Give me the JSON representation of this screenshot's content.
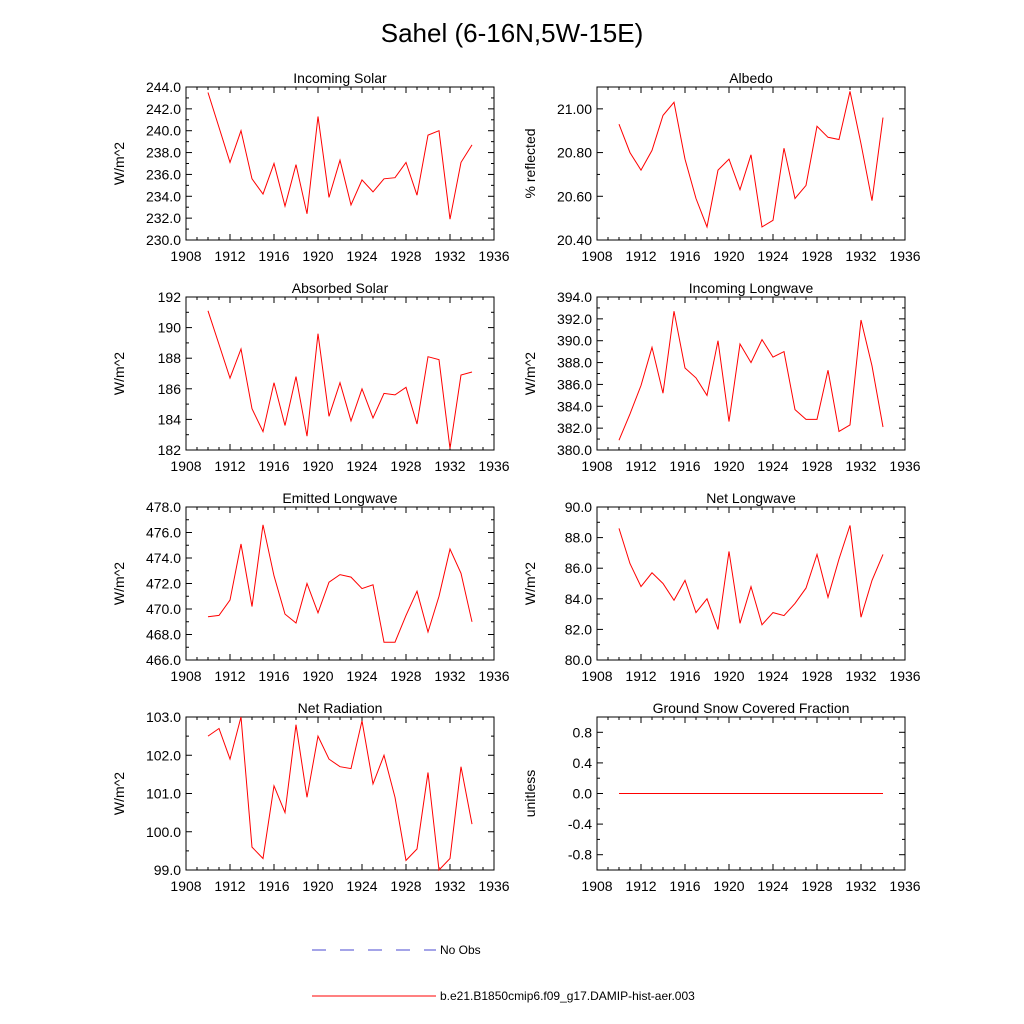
{
  "figure": {
    "title": "Sahel (6-16N,5W-15E)"
  },
  "legend": {
    "entries": [
      {
        "label": "No Obs",
        "color": "#4a4ad0",
        "style": "dashed"
      },
      {
        "label": "b.e21.B1850cmip6.f09_g17.DAMIP-hist-aer.003",
        "color": "#ff0000",
        "style": "solid"
      }
    ]
  },
  "chart_data": [
    {
      "type": "line",
      "title": "Incoming Solar",
      "ylabel": "W/m^2",
      "xlim": [
        1908,
        1936
      ],
      "ylim": [
        230.0,
        244.0
      ],
      "xticks": [
        "1908",
        "1912",
        "1916",
        "1920",
        "1924",
        "1928",
        "1932",
        "1936"
      ],
      "yticks": [
        "230.0",
        "232.0",
        "234.0",
        "236.0",
        "238.0",
        "240.0",
        "242.0",
        "244.0"
      ],
      "series": [
        {
          "color": "#ff0000",
          "x": [
            1910,
            1911,
            1912,
            1913,
            1914,
            1915,
            1916,
            1917,
            1918,
            1919,
            1920,
            1921,
            1922,
            1923,
            1924,
            1925,
            1926,
            1927,
            1928,
            1929,
            1930,
            1931,
            1932,
            1933,
            1934
          ],
          "y": [
            243.5,
            240.3,
            237.1,
            240.0,
            235.6,
            234.2,
            237.0,
            233.1,
            236.9,
            232.4,
            241.3,
            233.9,
            237.3,
            233.2,
            235.5,
            234.4,
            235.6,
            235.7,
            237.1,
            234.1,
            239.6,
            240.0,
            231.9,
            237.1,
            238.7
          ]
        }
      ]
    },
    {
      "type": "line",
      "title": "Albedo",
      "ylabel": "% reflected",
      "xlim": [
        1908,
        1936
      ],
      "ylim": [
        20.4,
        21.1
      ],
      "xticks": [
        "1908",
        "1912",
        "1916",
        "1920",
        "1924",
        "1928",
        "1932",
        "1936"
      ],
      "yticks": [
        "20.40",
        "20.60",
        "20.80",
        "21.00"
      ],
      "series": [
        {
          "color": "#ff0000",
          "x": [
            1910,
            1911,
            1912,
            1913,
            1914,
            1915,
            1916,
            1917,
            1918,
            1919,
            1920,
            1921,
            1922,
            1923,
            1924,
            1925,
            1926,
            1927,
            1928,
            1929,
            1930,
            1931,
            1932,
            1933,
            1934
          ],
          "y": [
            20.93,
            20.8,
            20.72,
            20.81,
            20.97,
            21.03,
            20.77,
            20.59,
            20.46,
            20.72,
            20.77,
            20.63,
            20.79,
            20.46,
            20.49,
            20.82,
            20.59,
            20.65,
            20.92,
            20.87,
            20.86,
            21.08,
            20.84,
            20.58,
            20.96
          ]
        }
      ]
    },
    {
      "type": "line",
      "title": "Absorbed Solar",
      "ylabel": "W/m^2",
      "xlim": [
        1908,
        1936
      ],
      "ylim": [
        182,
        192
      ],
      "xticks": [
        "1908",
        "1912",
        "1916",
        "1920",
        "1924",
        "1928",
        "1932",
        "1936"
      ],
      "yticks": [
        "182",
        "184",
        "186",
        "188",
        "190",
        "192"
      ],
      "series": [
        {
          "color": "#ff0000",
          "x": [
            1910,
            1911,
            1912,
            1913,
            1914,
            1915,
            1916,
            1917,
            1918,
            1919,
            1920,
            1921,
            1922,
            1923,
            1924,
            1925,
            1926,
            1927,
            1928,
            1929,
            1930,
            1931,
            1932,
            1933,
            1934
          ],
          "y": [
            191.1,
            188.9,
            186.7,
            188.6,
            184.7,
            183.2,
            186.4,
            183.6,
            186.8,
            182.9,
            189.6,
            184.2,
            186.4,
            183.9,
            186.0,
            184.1,
            185.7,
            185.6,
            186.1,
            183.7,
            188.1,
            187.9,
            182.1,
            186.9,
            187.1
          ]
        }
      ]
    },
    {
      "type": "line",
      "title": "Incoming Longwave",
      "ylabel": "W/m^2",
      "xlim": [
        1908,
        1936
      ],
      "ylim": [
        380.0,
        394.0
      ],
      "xticks": [
        "1908",
        "1912",
        "1916",
        "1920",
        "1924",
        "1928",
        "1932",
        "1936"
      ],
      "yticks": [
        "380.0",
        "382.0",
        "384.0",
        "386.0",
        "388.0",
        "390.0",
        "392.0",
        "394.0"
      ],
      "series": [
        {
          "color": "#ff0000",
          "x": [
            1910,
            1911,
            1912,
            1913,
            1914,
            1915,
            1916,
            1917,
            1918,
            1919,
            1920,
            1921,
            1922,
            1923,
            1924,
            1925,
            1926,
            1927,
            1928,
            1929,
            1930,
            1931,
            1932,
            1933,
            1934
          ],
          "y": [
            380.9,
            383.3,
            385.9,
            389.4,
            385.2,
            392.7,
            387.5,
            386.6,
            385.0,
            390.0,
            382.6,
            389.7,
            388.0,
            390.1,
            388.5,
            389.0,
            383.7,
            382.8,
            382.8,
            387.3,
            381.7,
            382.3,
            391.9,
            387.7,
            382.1
          ]
        }
      ]
    },
    {
      "type": "line",
      "title": "Emitted Longwave",
      "ylabel": "W/m^2",
      "xlim": [
        1908,
        1936
      ],
      "ylim": [
        466.0,
        478.0
      ],
      "xticks": [
        "1908",
        "1912",
        "1916",
        "1920",
        "1924",
        "1928",
        "1932",
        "1936"
      ],
      "yticks": [
        "466.0",
        "468.0",
        "470.0",
        "472.0",
        "474.0",
        "476.0",
        "478.0"
      ],
      "series": [
        {
          "color": "#ff0000",
          "x": [
            1910,
            1911,
            1912,
            1913,
            1914,
            1915,
            1916,
            1917,
            1918,
            1919,
            1920,
            1921,
            1922,
            1923,
            1924,
            1925,
            1926,
            1927,
            1928,
            1929,
            1930,
            1931,
            1932,
            1933,
            1934
          ],
          "y": [
            469.4,
            469.5,
            470.7,
            475.1,
            470.2,
            476.6,
            472.6,
            469.6,
            468.9,
            472.0,
            469.7,
            472.1,
            472.7,
            472.5,
            471.6,
            471.9,
            467.4,
            467.4,
            469.5,
            471.4,
            468.2,
            471.0,
            474.7,
            472.8,
            469.0
          ]
        }
      ]
    },
    {
      "type": "line",
      "title": "Net Longwave",
      "ylabel": "W/m^2",
      "xlim": [
        1908,
        1936
      ],
      "ylim": [
        80.0,
        90.0
      ],
      "xticks": [
        "1908",
        "1912",
        "1916",
        "1920",
        "1924",
        "1928",
        "1932",
        "1936"
      ],
      "yticks": [
        "80.0",
        "82.0",
        "84.0",
        "86.0",
        "88.0",
        "90.0"
      ],
      "series": [
        {
          "color": "#ff0000",
          "x": [
            1910,
            1911,
            1912,
            1913,
            1914,
            1915,
            1916,
            1917,
            1918,
            1919,
            1920,
            1921,
            1922,
            1923,
            1924,
            1925,
            1926,
            1927,
            1928,
            1929,
            1930,
            1931,
            1932,
            1933,
            1934
          ],
          "y": [
            88.6,
            86.3,
            84.8,
            85.7,
            85.0,
            83.9,
            85.2,
            83.1,
            84.0,
            82.0,
            87.1,
            82.4,
            84.8,
            82.3,
            83.1,
            82.9,
            83.7,
            84.7,
            86.9,
            84.1,
            86.6,
            88.8,
            82.8,
            85.2,
            86.9
          ]
        }
      ]
    },
    {
      "type": "line",
      "title": "Net Radiation",
      "ylabel": "W/m^2",
      "xlim": [
        1908,
        1936
      ],
      "ylim": [
        99.0,
        103.0
      ],
      "xticks": [
        "1908",
        "1912",
        "1916",
        "1920",
        "1924",
        "1928",
        "1932",
        "1936"
      ],
      "yticks": [
        "99.0",
        "100.0",
        "101.0",
        "102.0",
        "103.0"
      ],
      "series": [
        {
          "color": "#ff0000",
          "x": [
            1910,
            1911,
            1912,
            1913,
            1914,
            1915,
            1916,
            1917,
            1918,
            1919,
            1920,
            1921,
            1922,
            1923,
            1924,
            1925,
            1926,
            1927,
            1928,
            1929,
            1930,
            1931,
            1932,
            1933,
            1934
          ],
          "y": [
            102.5,
            102.7,
            101.9,
            103.0,
            99.6,
            99.3,
            101.2,
            100.5,
            102.8,
            100.9,
            102.5,
            101.9,
            101.7,
            101.65,
            102.9,
            101.25,
            102.0,
            100.9,
            99.25,
            99.55,
            101.55,
            99.0,
            99.3,
            101.7,
            100.2
          ]
        }
      ]
    },
    {
      "type": "line",
      "title": "Ground Snow Covered Fraction",
      "ylabel": "unitless",
      "xlim": [
        1908,
        1936
      ],
      "ylim": [
        -1.0,
        1.0
      ],
      "xticks": [
        "1908",
        "1912",
        "1916",
        "1920",
        "1924",
        "1928",
        "1932",
        "1936"
      ],
      "yticks": [
        "-0.8",
        "-0.4",
        "0.0",
        "0.4",
        "0.8"
      ],
      "series": [
        {
          "color": "#ff0000",
          "x": [
            1910,
            1934
          ],
          "y": [
            0.0,
            0.0
          ]
        }
      ]
    }
  ]
}
